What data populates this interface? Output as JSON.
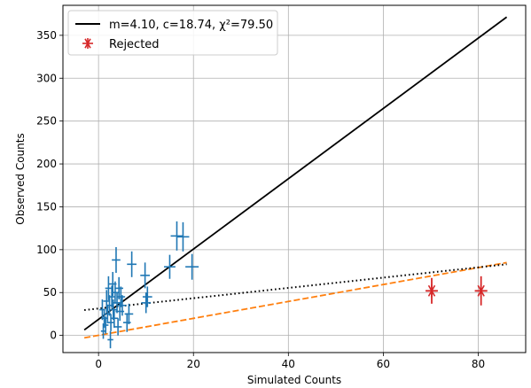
{
  "chart_data": {
    "type": "scatter",
    "xlabel": "Simulated Counts",
    "ylabel": "Observed Counts",
    "xlim": [
      -7.5,
      90
    ],
    "ylim": [
      -20,
      385
    ],
    "x_ticks": [
      0,
      20,
      40,
      60,
      80
    ],
    "y_ticks": [
      0,
      50,
      100,
      150,
      200,
      250,
      300,
      350
    ],
    "grid": true,
    "legend_position": "top-left",
    "colors": {
      "data": "#1f77b4",
      "fit": "#000000",
      "rejected": "#d62728",
      "dashed_fit": "#ff7f0e",
      "dotted_fit": "#000000"
    },
    "lines": [
      {
        "name": "m=4.10, c=18.74, χ²=79.50",
        "style": "solid",
        "color": "#000000",
        "x": [
          -3.0,
          86.0
        ],
        "y": [
          6.4,
          371.3
        ]
      },
      {
        "name": "",
        "style": "dashed",
        "color": "#ff7f0e",
        "x": [
          -3.0,
          86.0
        ],
        "y": [
          -2.8,
          85.0
        ]
      },
      {
        "name": "",
        "style": "dotted",
        "color": "#000000",
        "x": [
          -3.0,
          86.0
        ],
        "y": [
          29.6,
          83.0
        ]
      }
    ],
    "series": [
      {
        "name": "",
        "marker": "errorbar",
        "color": "#1f77b4",
        "points": [
          {
            "x": 0.8,
            "y": 30,
            "xerr": 0.6,
            "yerr": 12
          },
          {
            "x": 1.0,
            "y": 5,
            "xerr": 0.5,
            "yerr": 9
          },
          {
            "x": 1.2,
            "y": 20,
            "xerr": 0.6,
            "yerr": 11
          },
          {
            "x": 1.5,
            "y": 12,
            "xerr": 0.6,
            "yerr": 10
          },
          {
            "x": 1.7,
            "y": 40,
            "xerr": 0.7,
            "yerr": 13
          },
          {
            "x": 1.9,
            "y": 25,
            "xerr": 0.7,
            "yerr": 11
          },
          {
            "x": 2.1,
            "y": 55,
            "xerr": 0.7,
            "yerr": 14
          },
          {
            "x": 2.3,
            "y": 35,
            "xerr": 0.7,
            "yerr": 12
          },
          {
            "x": 2.5,
            "y": -5,
            "xerr": 0.6,
            "yerr": 10
          },
          {
            "x": 2.6,
            "y": 15,
            "xerr": 0.7,
            "yerr": 10
          },
          {
            "x": 2.8,
            "y": 45,
            "xerr": 0.8,
            "yerr": 13
          },
          {
            "x": 3.0,
            "y": 60,
            "xerr": 0.8,
            "yerr": 14
          },
          {
            "x": 3.1,
            "y": 30,
            "xerr": 0.8,
            "yerr": 12
          },
          {
            "x": 3.3,
            "y": 20,
            "xerr": 0.8,
            "yerr": 11
          },
          {
            "x": 3.5,
            "y": 50,
            "xerr": 0.8,
            "yerr": 13
          },
          {
            "x": 3.7,
            "y": 88,
            "xerr": 0.9,
            "yerr": 15
          },
          {
            "x": 3.9,
            "y": 38,
            "xerr": 0.8,
            "yerr": 12
          },
          {
            "x": 4.1,
            "y": 10,
            "xerr": 0.8,
            "yerr": 10
          },
          {
            "x": 4.3,
            "y": 55,
            "xerr": 0.9,
            "yerr": 13
          },
          {
            "x": 4.5,
            "y": 28,
            "xerr": 0.9,
            "yerr": 11
          },
          {
            "x": 4.7,
            "y": 45,
            "xerr": 0.9,
            "yerr": 12
          },
          {
            "x": 5.0,
            "y": 35,
            "xerr": 0.9,
            "yerr": 12
          },
          {
            "x": 6.0,
            "y": 15,
            "xerr": 0.8,
            "yerr": 11
          },
          {
            "x": 6.4,
            "y": 25,
            "xerr": 0.9,
            "yerr": 12
          },
          {
            "x": 7.0,
            "y": 83,
            "xerr": 1.0,
            "yerr": 15
          },
          {
            "x": 9.8,
            "y": 70,
            "xerr": 1.0,
            "yerr": 15
          },
          {
            "x": 10.0,
            "y": 38,
            "xerr": 1.0,
            "yerr": 12
          },
          {
            "x": 10.3,
            "y": 45,
            "xerr": 1.0,
            "yerr": 12
          },
          {
            "x": 15.0,
            "y": 80,
            "xerr": 1.2,
            "yerr": 14
          },
          {
            "x": 16.5,
            "y": 116,
            "xerr": 1.3,
            "yerr": 17
          },
          {
            "x": 17.8,
            "y": 115,
            "xerr": 1.3,
            "yerr": 17
          },
          {
            "x": 19.7,
            "y": 80,
            "xerr": 1.4,
            "yerr": 15
          }
        ]
      },
      {
        "name": "Rejected",
        "marker": "star",
        "color": "#d62728",
        "points": [
          {
            "x": 70.2,
            "y": 52,
            "xerr": 1.2,
            "yerr": 15
          },
          {
            "x": 80.6,
            "y": 52,
            "xerr": 1.3,
            "yerr": 17
          }
        ]
      }
    ]
  }
}
